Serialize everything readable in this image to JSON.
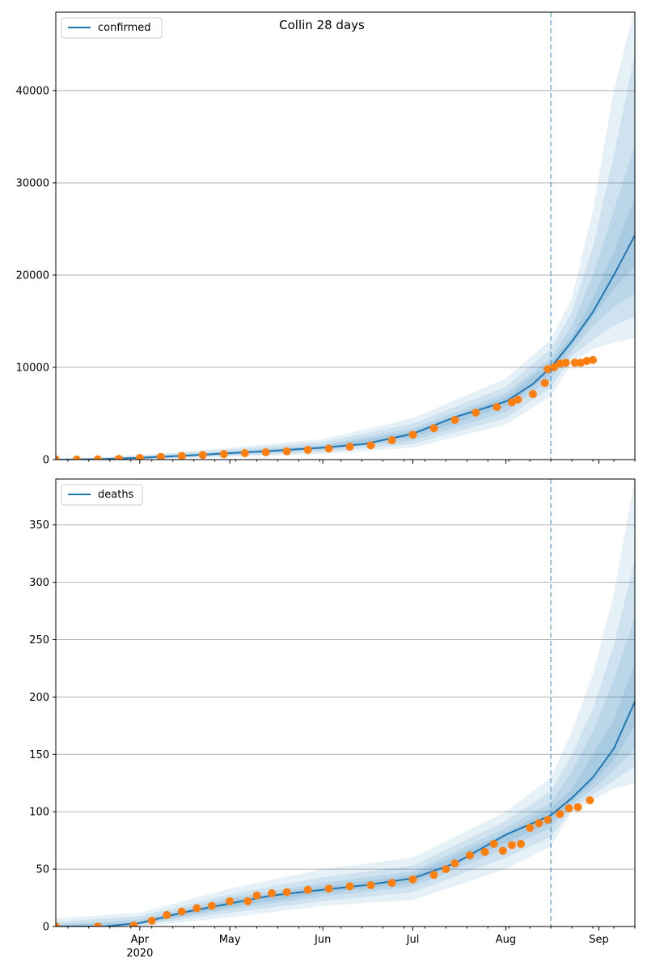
{
  "figure": {
    "title": "Collin 28 days"
  },
  "colors": {
    "model": "#1f77b4",
    "observed": "#ff7f0e",
    "band": "#1f77b4",
    "grid": "#b0b0b0"
  },
  "x_axis": {
    "ticks": [
      {
        "date": "2020-04-01",
        "label": "Apr",
        "sublabel": "2020"
      },
      {
        "date": "2020-05-01",
        "label": "May",
        "sublabel": ""
      },
      {
        "date": "2020-06-01",
        "label": "Jun",
        "sublabel": ""
      },
      {
        "date": "2020-07-01",
        "label": "Jul",
        "sublabel": ""
      },
      {
        "date": "2020-08-01",
        "label": "Aug",
        "sublabel": ""
      },
      {
        "date": "2020-09-01",
        "label": "Sep",
        "sublabel": ""
      }
    ],
    "minor_ticks": [
      "2020-03-08",
      "2020-03-15",
      "2020-03-22",
      "2020-03-29",
      "2020-04-05",
      "2020-04-12",
      "2020-04-19",
      "2020-04-26",
      "2020-05-03",
      "2020-05-10",
      "2020-05-17",
      "2020-05-24",
      "2020-05-31",
      "2020-06-07",
      "2020-06-14",
      "2020-06-21",
      "2020-06-28",
      "2020-07-05",
      "2020-07-12",
      "2020-07-19",
      "2020-07-26",
      "2020-08-02",
      "2020-08-09",
      "2020-08-16",
      "2020-08-23",
      "2020-08-30",
      "2020-09-06",
      "2020-09-13"
    ]
  },
  "chart_data": [
    {
      "type": "line",
      "legend": "confirmed",
      "legend_position": "top-left",
      "grid": "y",
      "xlim": [
        "2020-03-04",
        "2020-09-13"
      ],
      "ylim": [
        0,
        48500
      ],
      "yticks": [
        0,
        10000,
        20000,
        30000,
        40000
      ],
      "forecast_start": "2020-08-16",
      "model_line": {
        "x": [
          "2020-03-04",
          "2020-03-20",
          "2020-04-01",
          "2020-04-15",
          "2020-05-01",
          "2020-05-15",
          "2020-06-01",
          "2020-06-15",
          "2020-07-01",
          "2020-07-15",
          "2020-08-01",
          "2020-08-10",
          "2020-08-16",
          "2020-08-23",
          "2020-08-30",
          "2020-09-06",
          "2020-09-13"
        ],
        "y": [
          0,
          50,
          200,
          400,
          700,
          950,
          1300,
          1700,
          2800,
          4600,
          6300,
          8200,
          10000,
          12800,
          16000,
          20000,
          24300
        ]
      },
      "bands": [
        {
          "x": [
            "2020-03-04",
            "2020-04-01",
            "2020-05-01",
            "2020-06-01",
            "2020-07-01",
            "2020-08-01",
            "2020-08-16",
            "2020-08-23",
            "2020-08-30",
            "2020-09-06",
            "2020-09-13"
          ],
          "low": [
            0,
            0,
            300,
            600,
            1300,
            3800,
            6900,
            10500,
            12000,
            12700,
            13200
          ],
          "high": [
            0,
            500,
            1300,
            2200,
            4500,
            8800,
            13000,
            17500,
            27000,
            40000,
            49000
          ]
        },
        {
          "x": [
            "2020-03-04",
            "2020-04-01",
            "2020-05-01",
            "2020-06-01",
            "2020-07-01",
            "2020-08-01",
            "2020-08-16",
            "2020-08-23",
            "2020-08-30",
            "2020-09-06",
            "2020-09-13"
          ],
          "low": [
            0,
            50,
            400,
            800,
            1700,
            4500,
            7800,
            11200,
            13000,
            14500,
            15500
          ],
          "high": [
            0,
            400,
            1100,
            1900,
            3900,
            7900,
            12000,
            16000,
            23000,
            33000,
            44000
          ]
        },
        {
          "x": [
            "2020-03-04",
            "2020-04-01",
            "2020-05-01",
            "2020-06-01",
            "2020-07-01",
            "2020-08-01",
            "2020-08-16",
            "2020-08-23",
            "2020-08-30",
            "2020-09-06",
            "2020-09-13"
          ],
          "low": [
            0,
            100,
            500,
            1000,
            2100,
            5200,
            8700,
            11800,
            14500,
            16500,
            18000
          ],
          "high": [
            0,
            300,
            900,
            1600,
            3400,
            7200,
            11000,
            14500,
            20000,
            27000,
            34000
          ]
        },
        {
          "x": [
            "2020-03-04",
            "2020-04-01",
            "2020-05-01",
            "2020-06-01",
            "2020-07-01",
            "2020-08-01",
            "2020-08-16",
            "2020-08-23",
            "2020-08-30",
            "2020-09-06",
            "2020-09-13"
          ],
          "low": [
            0,
            150,
            600,
            1150,
            2450,
            5800,
            9300,
            12300,
            15500,
            18500,
            21000
          ],
          "high": [
            0,
            250,
            800,
            1450,
            3100,
            6800,
            10600,
            13400,
            17500,
            22500,
            28500
          ]
        }
      ],
      "observed": {
        "x": [
          "2020-03-04",
          "2020-03-11",
          "2020-03-18",
          "2020-03-25",
          "2020-04-01",
          "2020-04-08",
          "2020-04-15",
          "2020-04-22",
          "2020-04-29",
          "2020-05-06",
          "2020-05-13",
          "2020-05-20",
          "2020-05-27",
          "2020-06-03",
          "2020-06-10",
          "2020-06-17",
          "2020-06-24",
          "2020-07-01",
          "2020-07-08",
          "2020-07-15",
          "2020-07-22",
          "2020-07-29",
          "2020-08-03",
          "2020-08-05",
          "2020-08-10",
          "2020-08-14",
          "2020-08-15",
          "2020-08-17",
          "2020-08-19",
          "2020-08-21",
          "2020-08-24",
          "2020-08-26",
          "2020-08-28",
          "2020-08-30"
        ],
        "y": [
          0,
          0,
          20,
          80,
          180,
          300,
          400,
          500,
          600,
          700,
          800,
          900,
          1050,
          1200,
          1400,
          1550,
          2100,
          2700,
          3400,
          4300,
          5100,
          5700,
          6200,
          6500,
          7100,
          8300,
          9800,
          10000,
          10400,
          10500,
          10500,
          10500,
          10700,
          10800
        ]
      }
    },
    {
      "type": "line",
      "legend": "deaths",
      "legend_position": "top-left",
      "grid": "y",
      "xlim": [
        "2020-03-04",
        "2020-09-13"
      ],
      "ylim": [
        0,
        390
      ],
      "yticks": [
        0,
        50,
        100,
        150,
        200,
        250,
        300,
        350
      ],
      "forecast_start": "2020-08-16",
      "model_line": {
        "x": [
          "2020-03-04",
          "2020-03-20",
          "2020-04-01",
          "2020-04-15",
          "2020-05-01",
          "2020-05-15",
          "2020-06-01",
          "2020-06-15",
          "2020-07-01",
          "2020-07-15",
          "2020-08-01",
          "2020-08-16",
          "2020-08-23",
          "2020-08-30",
          "2020-09-06",
          "2020-09-13"
        ],
        "y": [
          0,
          0,
          3,
          12,
          20,
          27,
          32,
          36,
          42,
          55,
          80,
          97,
          112,
          130,
          155,
          196
        ]
      },
      "bands": [
        {
          "x": [
            "2020-03-04",
            "2020-04-01",
            "2020-05-01",
            "2020-06-01",
            "2020-07-01",
            "2020-08-01",
            "2020-08-16",
            "2020-08-23",
            "2020-08-30",
            "2020-09-06",
            "2020-09-13"
          ],
          "low": [
            0,
            0,
            8,
            18,
            23,
            50,
            70,
            100,
            110,
            120,
            125
          ],
          "high": [
            7,
            12,
            33,
            50,
            60,
            100,
            130,
            170,
            220,
            290,
            390
          ]
        },
        {
          "x": [
            "2020-03-04",
            "2020-04-01",
            "2020-05-01",
            "2020-06-01",
            "2020-07-01",
            "2020-08-01",
            "2020-08-16",
            "2020-08-23",
            "2020-08-30",
            "2020-09-06",
            "2020-09-13"
          ],
          "low": [
            0,
            1,
            12,
            22,
            30,
            60,
            78,
            103,
            115,
            127,
            140
          ],
          "high": [
            4,
            9,
            28,
            43,
            53,
            92,
            118,
            150,
            190,
            245,
            320
          ]
        },
        {
          "x": [
            "2020-03-04",
            "2020-04-01",
            "2020-05-01",
            "2020-06-01",
            "2020-07-01",
            "2020-08-01",
            "2020-08-16",
            "2020-08-23",
            "2020-08-30",
            "2020-09-06",
            "2020-09-13"
          ],
          "low": [
            0,
            2,
            15,
            26,
            35,
            68,
            86,
            106,
            120,
            136,
            155
          ],
          "high": [
            2,
            6,
            25,
            38,
            48,
            86,
            108,
            135,
            170,
            215,
            270
          ]
        },
        {
          "x": [
            "2020-03-04",
            "2020-04-01",
            "2020-05-01",
            "2020-06-01",
            "2020-07-01",
            "2020-08-01",
            "2020-08-16",
            "2020-08-23",
            "2020-08-30",
            "2020-09-06",
            "2020-09-13"
          ],
          "low": [
            0,
            2,
            17,
            29,
            38,
            73,
            91,
            109,
            125,
            145,
            175
          ],
          "high": [
            1,
            4,
            23,
            35,
            45,
            82,
            103,
            120,
            150,
            180,
            230
          ]
        }
      ],
      "observed": {
        "x": [
          "2020-03-04",
          "2020-03-18",
          "2020-03-30",
          "2020-04-05",
          "2020-04-10",
          "2020-04-15",
          "2020-04-20",
          "2020-04-25",
          "2020-05-01",
          "2020-05-07",
          "2020-05-10",
          "2020-05-15",
          "2020-05-20",
          "2020-05-27",
          "2020-06-03",
          "2020-06-10",
          "2020-06-17",
          "2020-06-24",
          "2020-07-01",
          "2020-07-08",
          "2020-07-12",
          "2020-07-15",
          "2020-07-20",
          "2020-07-25",
          "2020-07-28",
          "2020-07-31",
          "2020-08-03",
          "2020-08-06",
          "2020-08-09",
          "2020-08-12",
          "2020-08-15",
          "2020-08-19",
          "2020-08-22",
          "2020-08-25",
          "2020-08-29"
        ],
        "y": [
          0,
          0,
          1,
          5,
          10,
          13,
          16,
          18,
          22,
          22,
          27,
          29,
          30,
          32,
          33,
          35,
          36,
          38,
          41,
          45,
          50,
          55,
          62,
          65,
          72,
          66,
          71,
          72,
          86,
          90,
          93,
          98,
          103,
          104,
          110
        ]
      }
    }
  ]
}
